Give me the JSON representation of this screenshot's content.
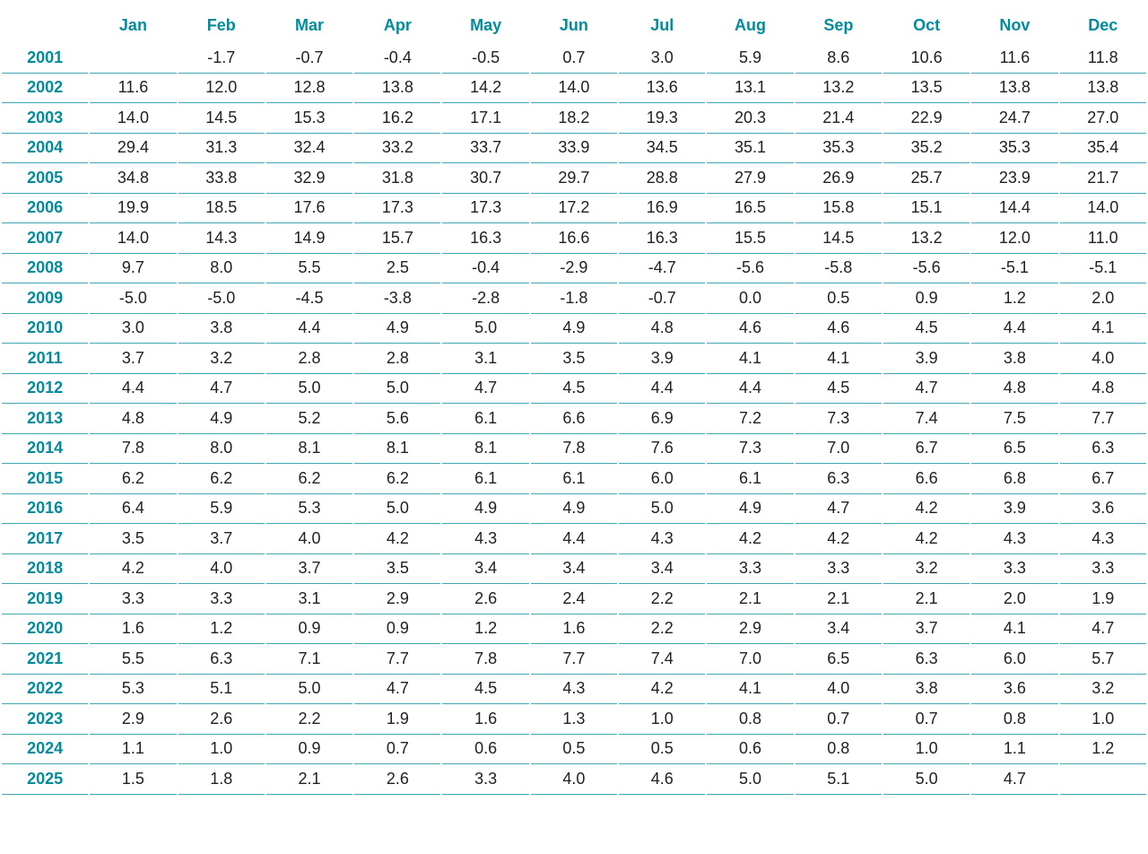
{
  "colors": {
    "header_text": "#008C9B",
    "row_line": "#3FA8B4",
    "value_text": "#212121",
    "background": "#FFFFFF"
  },
  "chart_data": {
    "type": "table",
    "title": "",
    "columns": [
      "Jan",
      "Feb",
      "Mar",
      "Apr",
      "May",
      "Jun",
      "Jul",
      "Aug",
      "Sep",
      "Oct",
      "Nov",
      "Dec"
    ],
    "layout": {
      "grid": "horizontal-row-separators",
      "header_position": "top",
      "row_labels": "years-left-column"
    },
    "rows": [
      {
        "year": "2001",
        "values": [
          "",
          "-1.7",
          "-0.7",
          "-0.4",
          "-0.5",
          "0.7",
          "3.0",
          "5.9",
          "8.6",
          "10.6",
          "11.6",
          "11.8"
        ]
      },
      {
        "year": "2002",
        "values": [
          "11.6",
          "12.0",
          "12.8",
          "13.8",
          "14.2",
          "14.0",
          "13.6",
          "13.1",
          "13.2",
          "13.5",
          "13.8",
          "13.8"
        ]
      },
      {
        "year": "2003",
        "values": [
          "14.0",
          "14.5",
          "15.3",
          "16.2",
          "17.1",
          "18.2",
          "19.3",
          "20.3",
          "21.4",
          "22.9",
          "24.7",
          "27.0"
        ]
      },
      {
        "year": "2004",
        "values": [
          "29.4",
          "31.3",
          "32.4",
          "33.2",
          "33.7",
          "33.9",
          "34.5",
          "35.1",
          "35.3",
          "35.2",
          "35.3",
          "35.4"
        ]
      },
      {
        "year": "2005",
        "values": [
          "34.8",
          "33.8",
          "32.9",
          "31.8",
          "30.7",
          "29.7",
          "28.8",
          "27.9",
          "26.9",
          "25.7",
          "23.9",
          "21.7"
        ]
      },
      {
        "year": "2006",
        "values": [
          "19.9",
          "18.5",
          "17.6",
          "17.3",
          "17.3",
          "17.2",
          "16.9",
          "16.5",
          "15.8",
          "15.1",
          "14.4",
          "14.0"
        ]
      },
      {
        "year": "2007",
        "values": [
          "14.0",
          "14.3",
          "14.9",
          "15.7",
          "16.3",
          "16.6",
          "16.3",
          "15.5",
          "14.5",
          "13.2",
          "12.0",
          "11.0"
        ]
      },
      {
        "year": "2008",
        "values": [
          "9.7",
          "8.0",
          "5.5",
          "2.5",
          "-0.4",
          "-2.9",
          "-4.7",
          "-5.6",
          "-5.8",
          "-5.6",
          "-5.1",
          "-5.1"
        ]
      },
      {
        "year": "2009",
        "values": [
          "-5.0",
          "-5.0",
          "-4.5",
          "-3.8",
          "-2.8",
          "-1.8",
          "-0.7",
          "0.0",
          "0.5",
          "0.9",
          "1.2",
          "2.0"
        ]
      },
      {
        "year": "2010",
        "values": [
          "3.0",
          "3.8",
          "4.4",
          "4.9",
          "5.0",
          "4.9",
          "4.8",
          "4.6",
          "4.6",
          "4.5",
          "4.4",
          "4.1"
        ]
      },
      {
        "year": "2011",
        "values": [
          "3.7",
          "3.2",
          "2.8",
          "2.8",
          "3.1",
          "3.5",
          "3.9",
          "4.1",
          "4.1",
          "3.9",
          "3.8",
          "4.0"
        ]
      },
      {
        "year": "2012",
        "values": [
          "4.4",
          "4.7",
          "5.0",
          "5.0",
          "4.7",
          "4.5",
          "4.4",
          "4.4",
          "4.5",
          "4.7",
          "4.8",
          "4.8"
        ]
      },
      {
        "year": "2013",
        "values": [
          "4.8",
          "4.9",
          "5.2",
          "5.6",
          "6.1",
          "6.6",
          "6.9",
          "7.2",
          "7.3",
          "7.4",
          "7.5",
          "7.7"
        ]
      },
      {
        "year": "2014",
        "values": [
          "7.8",
          "8.0",
          "8.1",
          "8.1",
          "8.1",
          "7.8",
          "7.6",
          "7.3",
          "7.0",
          "6.7",
          "6.5",
          "6.3"
        ]
      },
      {
        "year": "2015",
        "values": [
          "6.2",
          "6.2",
          "6.2",
          "6.2",
          "6.1",
          "6.1",
          "6.0",
          "6.1",
          "6.3",
          "6.6",
          "6.8",
          "6.7"
        ]
      },
      {
        "year": "2016",
        "values": [
          "6.4",
          "5.9",
          "5.3",
          "5.0",
          "4.9",
          "4.9",
          "5.0",
          "4.9",
          "4.7",
          "4.2",
          "3.9",
          "3.6"
        ]
      },
      {
        "year": "2017",
        "values": [
          "3.5",
          "3.7",
          "4.0",
          "4.2",
          "4.3",
          "4.4",
          "4.3",
          "4.2",
          "4.2",
          "4.2",
          "4.3",
          "4.3"
        ]
      },
      {
        "year": "2018",
        "values": [
          "4.2",
          "4.0",
          "3.7",
          "3.5",
          "3.4",
          "3.4",
          "3.4",
          "3.3",
          "3.3",
          "3.2",
          "3.3",
          "3.3"
        ]
      },
      {
        "year": "2019",
        "values": [
          "3.3",
          "3.3",
          "3.1",
          "2.9",
          "2.6",
          "2.4",
          "2.2",
          "2.1",
          "2.1",
          "2.1",
          "2.0",
          "1.9"
        ]
      },
      {
        "year": "2020",
        "values": [
          "1.6",
          "1.2",
          "0.9",
          "0.9",
          "1.2",
          "1.6",
          "2.2",
          "2.9",
          "3.4",
          "3.7",
          "4.1",
          "4.7"
        ]
      },
      {
        "year": "2021",
        "values": [
          "5.5",
          "6.3",
          "7.1",
          "7.7",
          "7.8",
          "7.7",
          "7.4",
          "7.0",
          "6.5",
          "6.3",
          "6.0",
          "5.7"
        ]
      },
      {
        "year": "2022",
        "values": [
          "5.3",
          "5.1",
          "5.0",
          "4.7",
          "4.5",
          "4.3",
          "4.2",
          "4.1",
          "4.0",
          "3.8",
          "3.6",
          "3.2"
        ]
      },
      {
        "year": "2023",
        "values": [
          "2.9",
          "2.6",
          "2.2",
          "1.9",
          "1.6",
          "1.3",
          "1.0",
          "0.8",
          "0.7",
          "0.7",
          "0.8",
          "1.0"
        ]
      },
      {
        "year": "2024",
        "values": [
          "1.1",
          "1.0",
          "0.9",
          "0.7",
          "0.6",
          "0.5",
          "0.5",
          "0.6",
          "0.8",
          "1.0",
          "1.1",
          "1.2"
        ]
      },
      {
        "year": "2025",
        "values": [
          "1.5",
          "1.8",
          "2.1",
          "2.6",
          "3.3",
          "4.0",
          "4.6",
          "5.0",
          "5.1",
          "5.0",
          "4.7",
          ""
        ]
      }
    ]
  }
}
